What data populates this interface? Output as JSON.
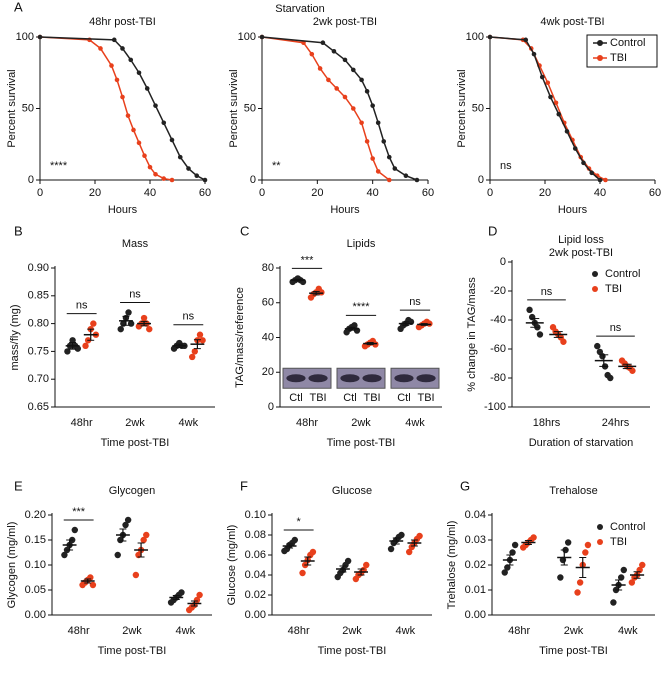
{
  "figure_title": "Starvation",
  "chart_data": [
    {
      "type": "line",
      "panel_label": "A",
      "title": "48hr post-TBI",
      "xlabel": "Hours",
      "ylabel": "Percent survival",
      "xlim": [
        0,
        60
      ],
      "xticks": [
        0,
        20,
        40,
        60
      ],
      "ylim": [
        0,
        100
      ],
      "yticks": [
        0,
        50,
        100
      ],
      "annotation": "****",
      "series": [
        {
          "name": "Control",
          "color": "#222222",
          "x": [
            0,
            27,
            30,
            33,
            36,
            39,
            42,
            45,
            48,
            51,
            54,
            57,
            60
          ],
          "values": [
            100,
            98,
            92,
            84,
            75,
            64,
            52,
            40,
            28,
            16,
            8,
            3,
            0
          ]
        },
        {
          "name": "TBI",
          "color": "#e8401c",
          "x": [
            0,
            18,
            22,
            26,
            28,
            30,
            32,
            34,
            36,
            38,
            40,
            42,
            45,
            48
          ],
          "values": [
            100,
            98,
            92,
            80,
            70,
            58,
            45,
            35,
            26,
            17,
            9,
            4,
            1,
            0
          ]
        }
      ]
    },
    {
      "type": "line",
      "title": "2wk post-TBI",
      "xlabel": "Hours",
      "ylabel": "Percent survival",
      "xlim": [
        0,
        60
      ],
      "xticks": [
        0,
        20,
        40,
        60
      ],
      "ylim": [
        0,
        100
      ],
      "yticks": [
        0,
        50,
        100
      ],
      "annotation": "**",
      "series": [
        {
          "name": "Control",
          "color": "#222222",
          "x": [
            0,
            22,
            26,
            30,
            33,
            36,
            38,
            40,
            42,
            44,
            46,
            48,
            52,
            56
          ],
          "values": [
            100,
            96,
            90,
            84,
            77,
            70,
            62,
            52,
            40,
            27,
            16,
            8,
            3,
            0
          ]
        },
        {
          "name": "TBI",
          "color": "#e8401c",
          "x": [
            0,
            15,
            18,
            21,
            24,
            27,
            30,
            33,
            36,
            38,
            40,
            42,
            46
          ],
          "values": [
            100,
            96,
            88,
            78,
            70,
            64,
            58,
            50,
            40,
            27,
            15,
            6,
            0
          ]
        }
      ]
    },
    {
      "type": "line",
      "title": "4wk post-TBI",
      "xlabel": "Hours",
      "ylabel": "Percent survival",
      "xlim": [
        0,
        60
      ],
      "xticks": [
        0,
        20,
        40,
        60
      ],
      "ylim": [
        0,
        100
      ],
      "yticks": [
        0,
        50,
        100
      ],
      "annotation": "ns",
      "legend": "upper right",
      "series": [
        {
          "name": "Control",
          "color": "#222222",
          "x": [
            0,
            13,
            16,
            19,
            22,
            25,
            28,
            31,
            34,
            37,
            40
          ],
          "values": [
            100,
            98,
            88,
            72,
            58,
            46,
            34,
            22,
            12,
            5,
            0
          ]
        },
        {
          "name": "TBI",
          "color": "#e8401c",
          "x": [
            0,
            12,
            15,
            18,
            21,
            24,
            27,
            30,
            33,
            36,
            39,
            42
          ],
          "values": [
            100,
            98,
            92,
            80,
            68,
            54,
            40,
            28,
            16,
            8,
            3,
            0
          ]
        }
      ]
    },
    {
      "type": "strip",
      "panel_label": "B",
      "title": "Mass",
      "xlabel": "Time post-TBI",
      "ylabel": "mass/fly (mg)",
      "categories": [
        "48hr",
        "2wk",
        "4wk"
      ],
      "ylim": [
        0.65,
        0.9
      ],
      "yticks": [
        0.65,
        {
          "value": 0.7,
          "label": "0.70"
        },
        0.75,
        {
          "value": 0.8,
          "label": "0.80"
        },
        0.85,
        {
          "value": 0.9,
          "label": "0.90"
        }
      ],
      "annotations": [
        "ns",
        "ns",
        "ns"
      ],
      "series": [
        {
          "name": "Control",
          "color": "#222222",
          "points": [
            [
              0.75,
              0.76,
              0.77,
              0.76,
              0.755
            ],
            [
              0.79,
              0.8,
              0.81,
              0.82,
              0.8
            ],
            [
              0.755,
              0.76,
              0.765,
              0.76,
              0.76
            ]
          ],
          "mean": [
            0.76,
            0.805,
            0.76
          ],
          "sem": [
            0.006,
            0.008,
            0.003
          ]
        },
        {
          "name": "TBI",
          "color": "#e8401c",
          "points": [
            [
              0.76,
              0.77,
              0.79,
              0.8,
              0.78
            ],
            [
              0.795,
              0.8,
              0.81,
              0.8,
              0.79
            ],
            [
              0.74,
              0.75,
              0.77,
              0.78,
              0.77
            ]
          ],
          "mean": [
            0.78,
            0.8,
            0.763
          ],
          "sem": [
            0.01,
            0.004,
            0.008
          ]
        }
      ]
    },
    {
      "type": "strip",
      "panel_label": "C",
      "title": "Lipids",
      "xlabel": "Time post-TBI",
      "ylabel": "TAG/mass/reference",
      "categories": [
        "48hr",
        "2wk",
        "4wk"
      ],
      "ylim": [
        0,
        80
      ],
      "yticks": [
        0,
        20,
        40,
        60,
        80
      ],
      "annotations": [
        "***",
        "****",
        "ns"
      ],
      "gel_labels": [
        "Ctl",
        "TBI"
      ],
      "series": [
        {
          "name": "Control",
          "color": "#222222",
          "points": [
            [
              72,
              73,
              74,
              73,
              72
            ],
            [
              43,
              45,
              46,
              47,
              44
            ],
            [
              45,
              47,
              48,
              50,
              49
            ]
          ],
          "mean": [
            73,
            45,
            48
          ],
          "sem": [
            0.5,
            0.8,
            1
          ]
        },
        {
          "name": "TBI",
          "color": "#e8401c",
          "points": [
            [
              63,
              65,
              66,
              68,
              66
            ],
            [
              35,
              36,
              37,
              38,
              36
            ],
            [
              46,
              47,
              48,
              49,
              48
            ]
          ],
          "mean": [
            65.5,
            36.5,
            47.5
          ],
          "sem": [
            1,
            0.6,
            0.5
          ]
        }
      ]
    },
    {
      "type": "strip",
      "panel_label": "D",
      "title": "Lipid loss",
      "subtitle": "2wk post-TBI",
      "xlabel": "Duration of starvation",
      "ylabel": "% change in TAG/mass",
      "categories": [
        "18hrs",
        "24hrs"
      ],
      "ylim": [
        -100,
        0
      ],
      "yticks": [
        -100,
        -80,
        -60,
        -40,
        -20,
        0
      ],
      "annotations": [
        "ns",
        "ns"
      ],
      "legend": "upper right",
      "series": [
        {
          "name": "Control",
          "color": "#222222",
          "points": [
            [
              -33,
              -38,
              -42,
              -45,
              -50
            ],
            [
              -58,
              -62,
              -65,
              -72,
              -78,
              -80
            ]
          ],
          "mean": [
            -42,
            -68
          ],
          "sem": [
            3,
            4
          ]
        },
        {
          "name": "TBI",
          "color": "#e8401c",
          "points": [
            [
              -45,
              -48,
              -50,
              -52,
              -55
            ],
            [
              -68,
              -70,
              -72,
              -73,
              -75
            ]
          ],
          "mean": [
            -50,
            -72
          ],
          "sem": [
            2,
            1.5
          ]
        }
      ]
    },
    {
      "type": "strip",
      "panel_label": "E",
      "title": "Glycogen",
      "xlabel": "Time post-TBI",
      "ylabel": "Glycogen (mg/ml)",
      "categories": [
        "48hr",
        "2wk",
        "4wk"
      ],
      "ylim": [
        0,
        0.2
      ],
      "yticks": [
        {
          "value": 0,
          "label": "0.00"
        },
        0.05,
        {
          "value": 0.1,
          "label": "0.10"
        },
        0.15,
        {
          "value": 0.2,
          "label": "0.20"
        }
      ],
      "annotations": [
        "***",
        null,
        null
      ],
      "series": [
        {
          "name": "Control",
          "color": "#222222",
          "points": [
            [
              0.12,
              0.13,
              0.14,
              0.15,
              0.17
            ],
            [
              0.12,
              0.15,
              0.16,
              0.18,
              0.19
            ],
            [
              0.025,
              0.03,
              0.035,
              0.04,
              0.045
            ]
          ],
          "mean": [
            0.14,
            0.16,
            0.035
          ],
          "sem": [
            0.01,
            0.012,
            0.004
          ]
        },
        {
          "name": "TBI",
          "color": "#e8401c",
          "points": [
            [
              0.06,
              0.065,
              0.07,
              0.075,
              0.06
            ],
            [
              0.08,
              0.12,
              0.13,
              0.15,
              0.16
            ],
            [
              0.01,
              0.015,
              0.02,
              0.03,
              0.04
            ]
          ],
          "mean": [
            0.068,
            0.13,
            0.023
          ],
          "sem": [
            0.004,
            0.014,
            0.005
          ]
        }
      ]
    },
    {
      "type": "strip",
      "panel_label": "F",
      "title": "Glucose",
      "xlabel": "Time post-TBI",
      "ylabel": "Glucose (mg/ml)",
      "categories": [
        "48hr",
        "2wk",
        "4wk"
      ],
      "ylim": [
        0,
        0.1
      ],
      "yticks": [
        {
          "value": 0,
          "label": "0.00"
        },
        0.02,
        0.04,
        0.06,
        0.08,
        {
          "value": 0.1,
          "label": "0.10"
        }
      ],
      "annotations": [
        "*",
        null,
        null
      ],
      "series": [
        {
          "name": "Control",
          "color": "#222222",
          "points": [
            [
              0.064,
              0.066,
              0.07,
              0.072,
              0.075
            ],
            [
              0.038,
              0.042,
              0.045,
              0.05,
              0.054
            ],
            [
              0.066,
              0.072,
              0.075,
              0.078,
              0.08
            ]
          ],
          "mean": [
            0.069,
            0.046,
            0.074
          ],
          "sem": [
            0.002,
            0.003,
            0.003
          ]
        },
        {
          "name": "TBI",
          "color": "#e8401c",
          "points": [
            [
              0.042,
              0.05,
              0.055,
              0.06,
              0.063
            ],
            [
              0.036,
              0.04,
              0.042,
              0.045,
              0.05
            ],
            [
              0.063,
              0.068,
              0.072,
              0.076,
              0.079
            ]
          ],
          "mean": [
            0.054,
            0.043,
            0.072
          ],
          "sem": [
            0.004,
            0.003,
            0.003
          ]
        }
      ]
    },
    {
      "type": "strip",
      "panel_label": "G",
      "title": "Trehalose",
      "xlabel": "Time post-TBI",
      "ylabel": "Trehalose (mg/ml)",
      "categories": [
        "48hr",
        "2wk",
        "4wk"
      ],
      "ylim": [
        0,
        0.04
      ],
      "yticks": [
        {
          "value": 0,
          "label": "0.00"
        },
        0.01,
        0.02,
        0.03,
        0.04
      ],
      "annotations": [
        null,
        null,
        null
      ],
      "legend": "upper right",
      "series": [
        {
          "name": "Control",
          "color": "#222222",
          "points": [
            [
              0.017,
              0.019,
              0.022,
              0.025,
              0.028
            ],
            [
              0.015,
              0.022,
              0.026,
              0.029
            ],
            [
              0.005,
              0.01,
              0.012,
              0.015,
              0.018
            ]
          ],
          "mean": [
            0.022,
            0.023,
            0.012
          ],
          "sem": [
            0.002,
            0.003,
            0.002
          ]
        },
        {
          "name": "TBI",
          "color": "#e8401c",
          "points": [
            [
              0.027,
              0.028,
              0.029,
              0.03,
              0.031
            ],
            [
              0.009,
              0.013,
              0.02,
              0.025,
              0.028
            ],
            [
              0.013,
              0.015,
              0.016,
              0.018,
              0.02
            ]
          ],
          "mean": [
            0.029,
            0.019,
            0.016
          ],
          "sem": [
            0.0008,
            0.004,
            0.0013
          ]
        }
      ]
    }
  ]
}
